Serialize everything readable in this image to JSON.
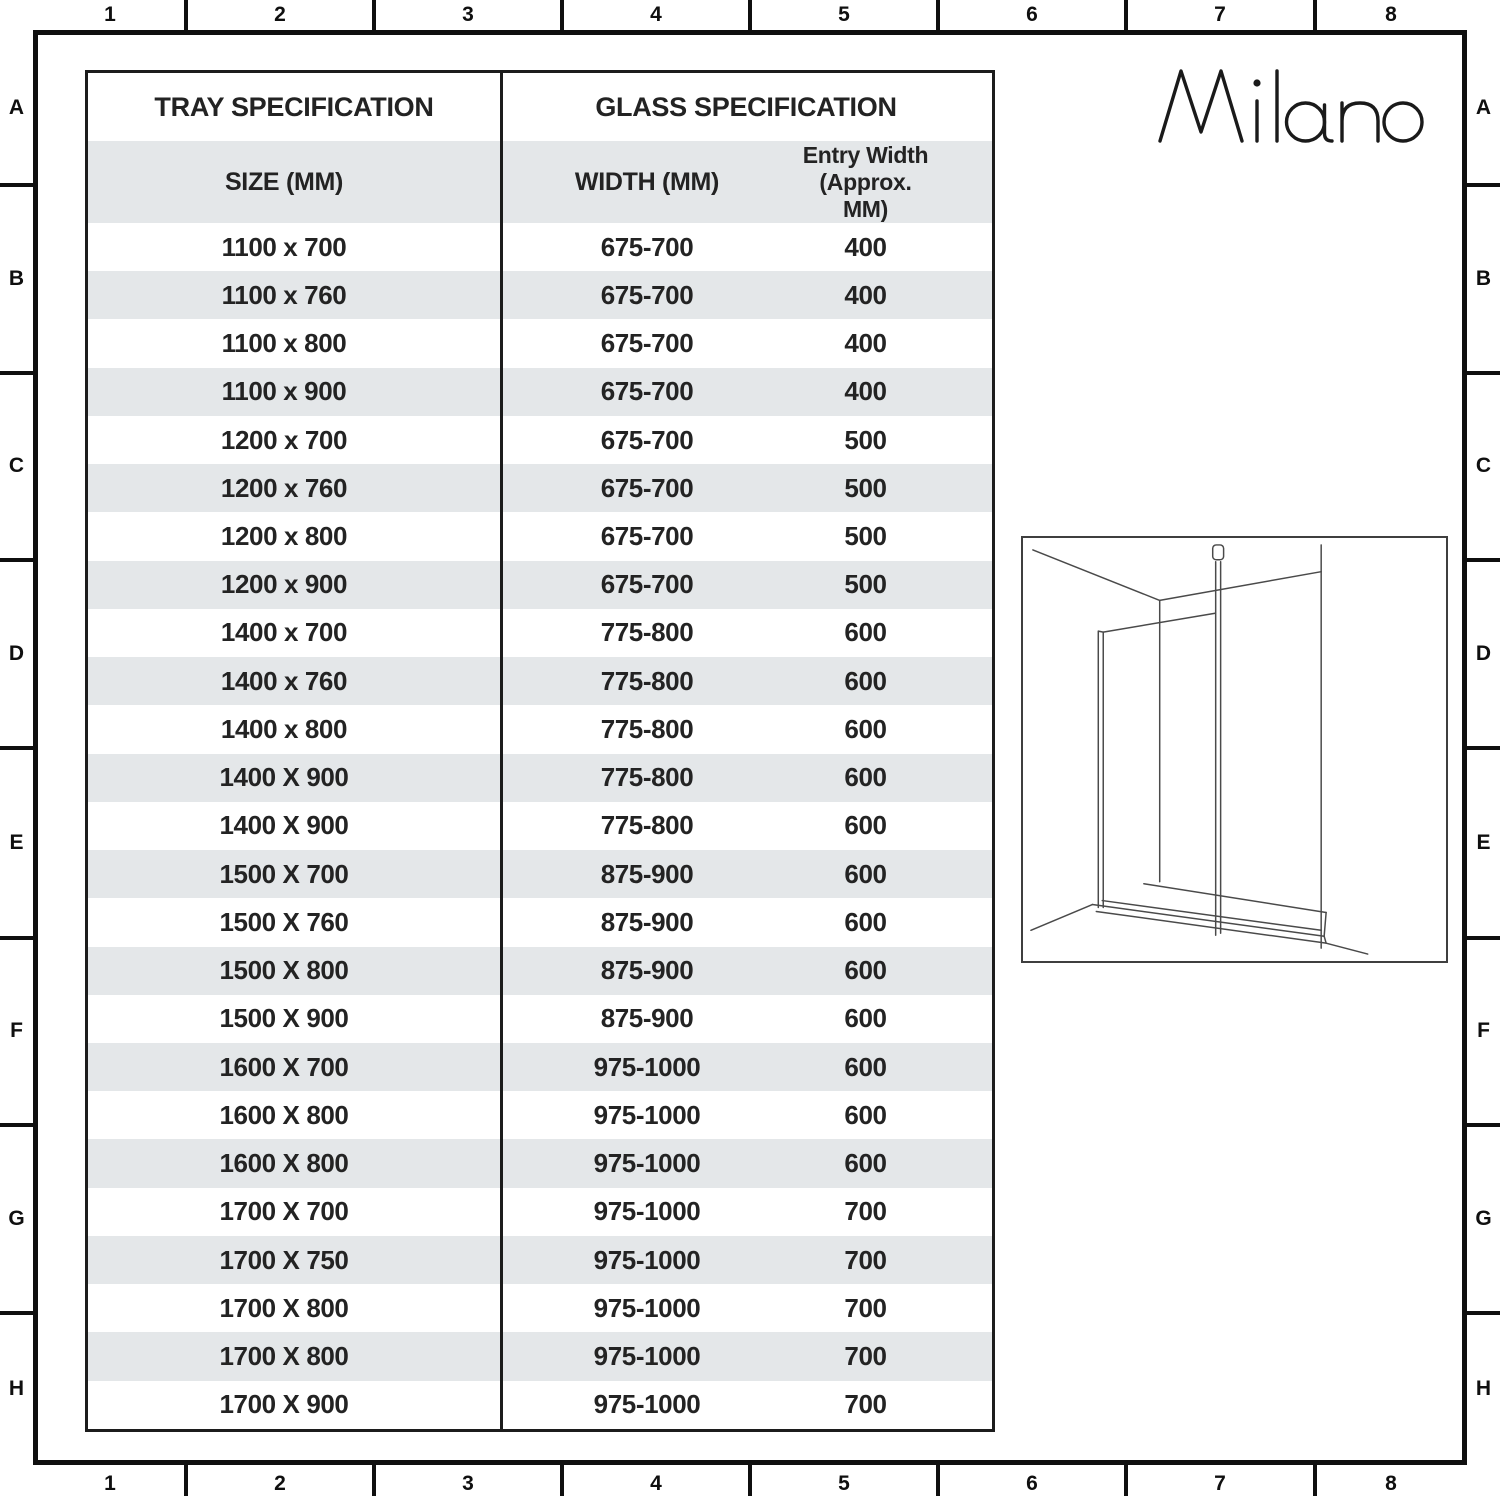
{
  "frame": {
    "columns": [
      "1",
      "2",
      "3",
      "4",
      "5",
      "6",
      "7",
      "8"
    ],
    "rows": [
      "A",
      "B",
      "C",
      "D",
      "E",
      "F",
      "G",
      "H"
    ]
  },
  "brand": {
    "logo_text": "Milano"
  },
  "chart_data": {
    "type": "table",
    "sections": [
      {
        "title": "TRAY SPECIFICATION"
      },
      {
        "title": "GLASS SPECIFICATION"
      }
    ],
    "columns": {
      "size": "SIZE (MM)",
      "width": "WIDTH (MM)",
      "entry_line1": "Entry Width",
      "entry_line2": "(Approx. MM)"
    },
    "rows": [
      {
        "size": "1100 x 700",
        "width": "675-700",
        "entry": "400"
      },
      {
        "size": "1100 x 760",
        "width": "675-700",
        "entry": "400"
      },
      {
        "size": "1100 x 800",
        "width": "675-700",
        "entry": "400"
      },
      {
        "size": "1100 x 900",
        "width": "675-700",
        "entry": "400"
      },
      {
        "size": "1200 x 700",
        "width": "675-700",
        "entry": "500"
      },
      {
        "size": "1200 x 760",
        "width": "675-700",
        "entry": "500"
      },
      {
        "size": "1200 x 800",
        "width": "675-700",
        "entry": "500"
      },
      {
        "size": "1200 x 900",
        "width": "675-700",
        "entry": "500"
      },
      {
        "size": "1400 x 700",
        "width": "775-800",
        "entry": "600"
      },
      {
        "size": "1400 x 760",
        "width": "775-800",
        "entry": "600"
      },
      {
        "size": "1400 x 800",
        "width": "775-800",
        "entry": "600"
      },
      {
        "size": "1400 X 900",
        "width": "775-800",
        "entry": "600"
      },
      {
        "size": "1400 X 900",
        "width": "775-800",
        "entry": "600"
      },
      {
        "size": "1500 X 700",
        "width": "875-900",
        "entry": "600"
      },
      {
        "size": "1500 X 760",
        "width": "875-900",
        "entry": "600"
      },
      {
        "size": "1500 X 800",
        "width": "875-900",
        "entry": "600"
      },
      {
        "size": "1500 X 900",
        "width": "875-900",
        "entry": "600"
      },
      {
        "size": "1600 X 700",
        "width": "975-1000",
        "entry": "600"
      },
      {
        "size": "1600 X 800",
        "width": "975-1000",
        "entry": "600"
      },
      {
        "size": "1600 X 800",
        "width": "975-1000",
        "entry": "600"
      },
      {
        "size": "1700 X 700",
        "width": "975-1000",
        "entry": "700"
      },
      {
        "size": "1700 X 750",
        "width": "975-1000",
        "entry": "700"
      },
      {
        "size": "1700 X 800",
        "width": "975-1000",
        "entry": "700"
      },
      {
        "size": "1700 X 800",
        "width": "975-1000",
        "entry": "700"
      },
      {
        "size": "1700 X 900",
        "width": "975-1000",
        "entry": "700"
      }
    ]
  },
  "colors": {
    "row_alt": "#e4e7e9",
    "frame_line": "#0f0f0f",
    "table_line": "#1c1c1c",
    "text": "#232323"
  },
  "icons": {
    "diagram": "shower-enclosure-line-drawing",
    "logo": "milano-wordmark"
  }
}
